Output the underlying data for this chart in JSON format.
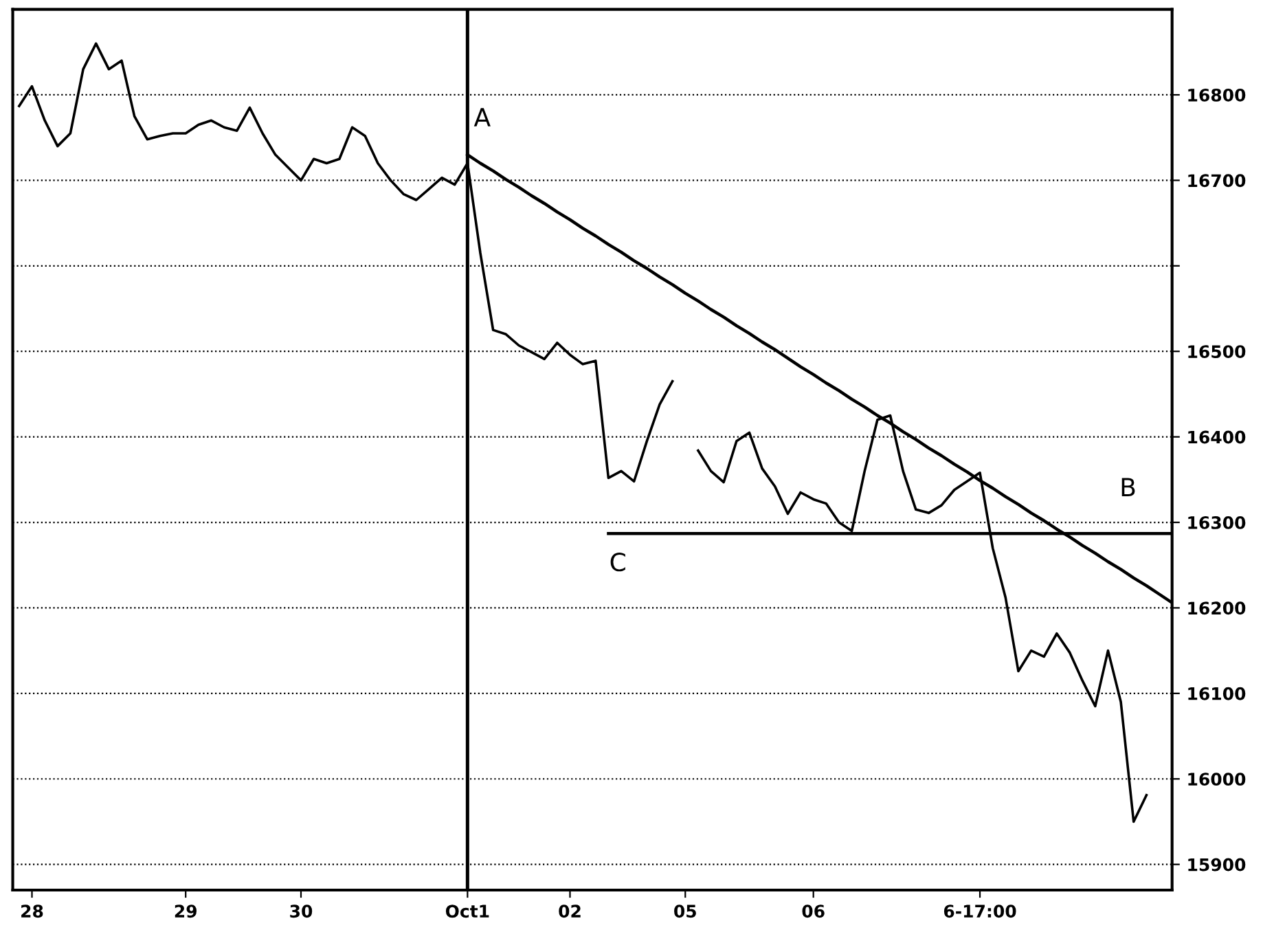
{
  "chart_data": {
    "type": "line",
    "categories": [
      null,
      "28",
      null,
      null,
      null,
      null,
      null,
      null,
      null,
      null,
      null,
      null,
      null,
      "29",
      null,
      null,
      null,
      null,
      null,
      null,
      null,
      null,
      "30",
      null,
      null,
      null,
      null,
      null,
      null,
      null,
      null,
      null,
      null,
      null,
      null,
      "Oct1",
      null,
      null,
      null,
      null,
      null,
      null,
      null,
      "02",
      null,
      null,
      null,
      null,
      null,
      null,
      null,
      null,
      "05",
      null,
      null,
      null,
      null,
      null,
      null,
      null,
      null,
      null,
      "06",
      null,
      null,
      null,
      null,
      null,
      null,
      null,
      null,
      null,
      null,
      null,
      null,
      "6-17:00",
      null,
      null,
      null,
      null,
      null,
      null,
      null,
      null,
      null,
      null,
      null,
      null,
      null,
      null,
      null
    ],
    "ylim": [
      15870,
      16900
    ],
    "yticks": [
      15900,
      16000,
      16100,
      16200,
      16300,
      16400,
      16500,
      {
        "value": 16600,
        "label": null
      },
      16700,
      16800
    ],
    "grid": "y",
    "marker": "none",
    "series": [
      {
        "color": "#000000",
        "line_style": "solid",
        "values": [
          16787,
          16810,
          16770,
          16740,
          16755,
          16830,
          16860,
          16830,
          16840,
          16775,
          16748,
          16752,
          16755,
          16755,
          16765,
          16770,
          16762,
          16758,
          16785,
          16755,
          16730,
          16715,
          16700,
          16725,
          16720,
          16725,
          16762,
          16752,
          16720,
          16700,
          16684,
          16677,
          16690,
          16703,
          16695,
          16720,
          16615,
          16525,
          16520,
          16507,
          16499,
          16491,
          16510,
          16496,
          16485,
          16489,
          16352,
          16360,
          16348,
          16395,
          16438,
          16465,
          null,
          16384,
          16360,
          16347,
          16395,
          16405,
          16363,
          16342,
          16310,
          16335,
          16327,
          16322,
          16300,
          16290,
          16360,
          16420,
          16425,
          16360,
          16315,
          16311,
          16320,
          16338,
          16348,
          16358,
          16270,
          16212,
          16126,
          16150,
          16143,
          16170,
          16148,
          16115,
          16085,
          16150,
          16090,
          15950,
          15981,
          null,
          null
        ]
      },
      {
        "color": "#000000",
        "line_style": "solid",
        "values": [
          null,
          null,
          null,
          null,
          null,
          null,
          null,
          null,
          null,
          null,
          null,
          null,
          null,
          null,
          null,
          null,
          null,
          null,
          null,
          null,
          null,
          null,
          null,
          null,
          null,
          null,
          null,
          null,
          null,
          null,
          null,
          null,
          null,
          null,
          null,
          16730,
          16720,
          16711,
          16701,
          16692,
          16682,
          16673,
          16663,
          16654,
          16644,
          16635,
          16625,
          16616,
          16606,
          16597,
          16587,
          16578,
          16568,
          16559,
          16549,
          16540,
          16530,
          16521,
          16511,
          16502,
          16492,
          16482,
          16473,
          16463,
          16454,
          16444,
          16435,
          16425,
          16416,
          16406,
          16397,
          16387,
          16378,
          16368,
          16359,
          16349,
          16340,
          16330,
          16321,
          16311,
          16302,
          16292,
          16283,
          16273,
          16264,
          16254,
          16245,
          16235,
          16226,
          16216,
          16206
        ]
      },
      {
        "color": "#000000",
        "line_style": "solid",
        "values": [
          null,
          null,
          null,
          null,
          null,
          null,
          null,
          null,
          null,
          null,
          null,
          null,
          null,
          null,
          null,
          null,
          null,
          null,
          null,
          null,
          null,
          null,
          null,
          null,
          null,
          null,
          null,
          null,
          null,
          null,
          null,
          null,
          null,
          null,
          null,
          null,
          null,
          null,
          null,
          null,
          null,
          null,
          null,
          null,
          null,
          null,
          16287,
          16287,
          16287,
          16287,
          16287,
          16287,
          16287,
          16287,
          16287,
          16287,
          16287,
          16287,
          16287,
          16287,
          16287,
          16287,
          16287,
          16287,
          16287,
          16287,
          16287,
          16287,
          16287,
          16287,
          16287,
          16287,
          16287,
          16287,
          16287,
          16287,
          16287,
          16287,
          16287,
          16287,
          16287,
          16287,
          16287,
          16287,
          16287,
          16287,
          16287,
          16287,
          16287,
          16287,
          16287
        ]
      }
    ],
    "ref_lines": [
      {
        "axis": "x",
        "value": "Oct1",
        "color": "#000000",
        "line_style": "solid"
      }
    ],
    "annotations": [
      "A",
      "C",
      "B"
    ]
  }
}
